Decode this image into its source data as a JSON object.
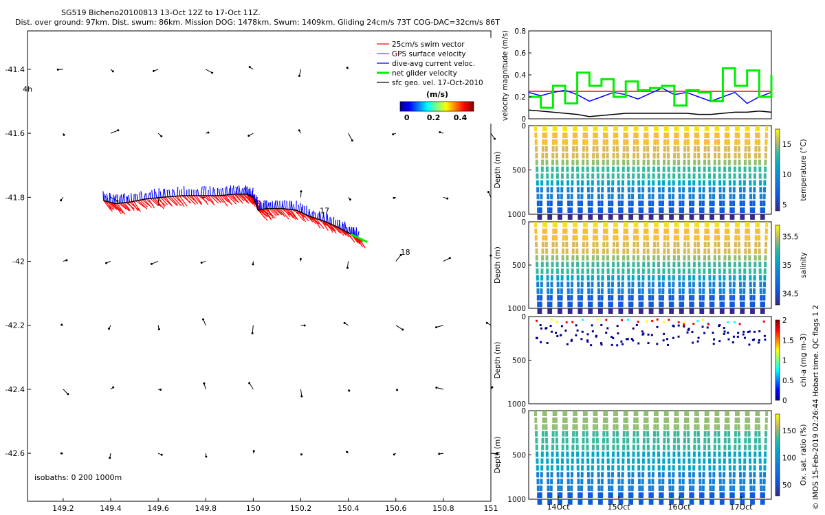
{
  "header": {
    "title_line1": "SG519 Bicheno20100813 13-Oct 12Z to 17-Oct 11Z.",
    "title_line2": "Dist. over ground: 97km. Dist. swum: 86km. Mission DOG: 1478km. Swum: 1409km. Gliding 24cm/s 73T COG-DAC=32cm/s 86T"
  },
  "copyright": "© IMOS 15-Feb-2019 02:26:44 Hobart time. QC flags 1 2",
  "chart_data": [
    {
      "type": "scatter",
      "panel": "map",
      "x_ticks": [
        "149.2",
        "149.4",
        "149.6",
        "149.8",
        "150",
        "150.2",
        "150.4",
        "150.6",
        "150.8",
        "151"
      ],
      "x_tick_values": [
        149.2,
        149.4,
        149.6,
        149.8,
        150.0,
        150.2,
        150.4,
        150.6,
        150.8,
        151.0
      ],
      "y_ticks": [
        "-41.4",
        "-41.6",
        "-41.8",
        "-42",
        "-42.2",
        "-42.4",
        "-42.6"
      ],
      "y_tick_values": [
        -41.4,
        -41.6,
        -41.8,
        -42.0,
        -42.2,
        -42.4,
        -42.6
      ],
      "xlim": [
        149.05,
        151.0
      ],
      "ylim": [
        -42.75,
        -41.28
      ],
      "legend": {
        "position": "top-right",
        "entries": [
          {
            "label": "25cm/s swim vector",
            "color": "#ff0000"
          },
          {
            "label": "GPS surface velocity",
            "color": "#ff00ff"
          },
          {
            "label": "dive-avg current veloc.",
            "color": "#0000ff"
          },
          {
            "label": "net glider velocity",
            "color": "#00ee00"
          },
          {
            "label": "sfc geo. vel. 17-Oct-2010",
            "color": "#000000"
          }
        ]
      },
      "colorbar": {
        "label": "(m/s)",
        "ticks": [
          "0",
          "0.2",
          "0.4"
        ],
        "tick_values": [
          0,
          0.2,
          0.4
        ],
        "range": [
          -0.05,
          0.5
        ]
      },
      "time_labels": [
        {
          "text": "4h",
          "lon": 149.03,
          "lat": -41.47
        },
        {
          "text": "17",
          "lon": 150.28,
          "lat": -41.85
        },
        {
          "text": "18",
          "lon": 150.62,
          "lat": -41.98
        }
      ],
      "isobaths_label": "isobaths: 0   200  1000m",
      "track": [
        [
          149.37,
          -41.81
        ],
        [
          149.42,
          -41.82
        ],
        [
          149.48,
          -41.815
        ],
        [
          149.55,
          -41.805
        ],
        [
          149.62,
          -41.8
        ],
        [
          149.7,
          -41.795
        ],
        [
          149.78,
          -41.795
        ],
        [
          149.86,
          -41.795
        ],
        [
          149.92,
          -41.79
        ],
        [
          149.97,
          -41.79
        ],
        [
          150.0,
          -41.8
        ],
        [
          150.02,
          -41.84
        ],
        [
          150.06,
          -41.835
        ],
        [
          150.12,
          -41.835
        ],
        [
          150.18,
          -41.84
        ],
        [
          150.24,
          -41.86
        ],
        [
          150.3,
          -41.875
        ],
        [
          150.36,
          -41.895
        ],
        [
          150.41,
          -41.915
        ],
        [
          150.44,
          -41.925
        ]
      ],
      "net_velocity_arrow": {
        "from": [
          150.41,
          -41.915
        ],
        "to": [
          150.48,
          -41.94
        ],
        "color": "#00ee00"
      },
      "geo_vel_grid_lon": [
        149.2,
        149.4,
        149.6,
        149.8,
        150.0,
        150.2,
        150.4,
        150.6,
        150.8,
        151.0
      ],
      "geo_vel_grid_lat": [
        -41.4,
        -41.6,
        -41.8,
        -42.0,
        -42.2,
        -42.4,
        -42.6
      ]
    },
    {
      "type": "line",
      "panel": "velocity",
      "ylabel": "velocity magnitude (m/s)",
      "ylim": [
        0,
        0.8
      ],
      "y_ticks": [
        "0",
        "0.2",
        "0.4",
        "0.6",
        "0.8"
      ],
      "y_tick_values": [
        0,
        0.2,
        0.4,
        0.6,
        0.8
      ],
      "series": [
        {
          "color": "#ff0000",
          "values": [
            0.25,
            0.25,
            0.25,
            0.25,
            0.25,
            0.25,
            0.25,
            0.25,
            0.25,
            0.25,
            0.25,
            0.25,
            0.25,
            0.25,
            0.25,
            0.25,
            0.25,
            0.25,
            0.25,
            0.25,
            0.25
          ]
        },
        {
          "color": "#0000ff",
          "values": [
            0.24,
            0.21,
            0.24,
            0.26,
            0.22,
            0.16,
            0.2,
            0.24,
            0.22,
            0.18,
            0.23,
            0.28,
            0.22,
            0.24,
            0.2,
            0.16,
            0.2,
            0.24,
            0.14,
            0.2,
            0.24
          ]
        },
        {
          "color": "#00ee00",
          "values": [
            0.2,
            0.1,
            0.3,
            0.14,
            0.42,
            0.3,
            0.36,
            0.2,
            0.34,
            0.26,
            0.28,
            0.3,
            0.12,
            0.26,
            0.24,
            0.16,
            0.46,
            0.3,
            0.44,
            0.2,
            0.4
          ]
        },
        {
          "color": "#000000",
          "values": [
            0.08,
            0.07,
            0.06,
            0.05,
            0.04,
            0.02,
            0.03,
            0.04,
            0.05,
            0.05,
            0.05,
            0.05,
            0.05,
            0.05,
            0.04,
            0.04,
            0.05,
            0.06,
            0.06,
            0.07,
            0.06
          ]
        }
      ]
    },
    {
      "type": "scatter",
      "panel": "temperature",
      "ylabel": "Depth (m)",
      "y_ticks": [
        "0",
        "500",
        "1000"
      ],
      "y_tick_values": [
        0,
        500,
        1000
      ],
      "colorbar_label": "temperature (°C)",
      "colorbar_ticks": [
        "5",
        "10",
        "15"
      ],
      "colorbar_tick_values": [
        5,
        10,
        15
      ],
      "colorbar_range": [
        4,
        17.5
      ]
    },
    {
      "type": "scatter",
      "panel": "salinity",
      "ylabel": "Depth (m)",
      "y_ticks": [
        "0",
        "500",
        "1000"
      ],
      "y_tick_values": [
        0,
        500,
        1000
      ],
      "colorbar_label": "salinity",
      "colorbar_ticks": [
        "34.5",
        "35",
        "35.5"
      ],
      "colorbar_tick_values": [
        34.5,
        35,
        35.5
      ],
      "colorbar_range": [
        34.3,
        35.7
      ]
    },
    {
      "type": "scatter",
      "panel": "chl-a",
      "ylabel": "Depth (m)",
      "y_ticks": [
        "0",
        "500",
        "1000"
      ],
      "y_tick_values": [
        0,
        500,
        1000
      ],
      "colorbar_label": "chl-a (mg m-3)",
      "colorbar_ticks": [
        "0",
        "0.5",
        "1",
        "1.5",
        "2"
      ],
      "colorbar_tick_values": [
        0,
        0.5,
        1,
        1.5,
        2
      ],
      "colorbar_range": [
        0,
        2
      ]
    },
    {
      "type": "scatter",
      "panel": "oxygen",
      "ylabel": "Depth (m)",
      "y_ticks": [
        "0",
        "500",
        "1000"
      ],
      "y_tick_values": [
        0,
        500,
        1000
      ],
      "colorbar_label": "Ox. sat. ratio (%)",
      "colorbar_ticks": [
        "50",
        "100",
        "150"
      ],
      "colorbar_tick_values": [
        50,
        100,
        150
      ],
      "colorbar_range": [
        30,
        180
      ],
      "x_ticks": [
        "14Oct",
        "15Oct",
        "16Oct",
        "17Oct"
      ],
      "x_tick_values": [
        1,
        2,
        3,
        4
      ]
    }
  ]
}
